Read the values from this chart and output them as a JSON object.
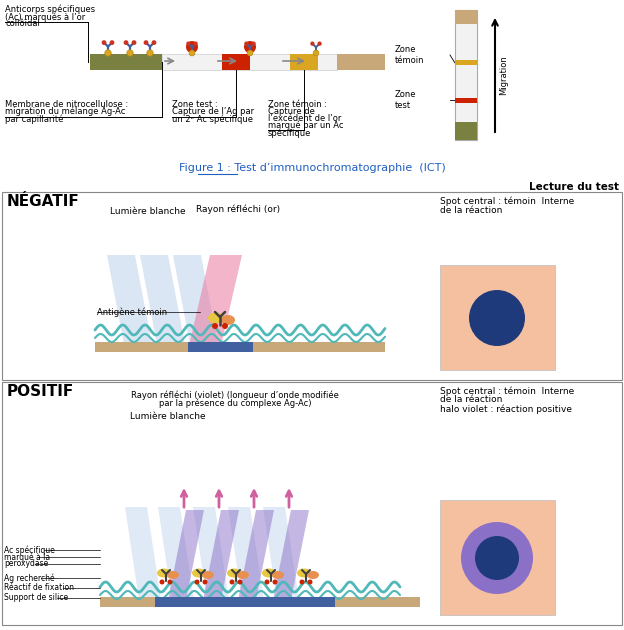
{
  "fig_width": 6.24,
  "fig_height": 6.3,
  "dpi": 100,
  "bg_color": "#ffffff",
  "figure1_title": "Figure 1 : Test d’immunochromatographie  (ICT)",
  "lecture_du_test": "Lecture du test",
  "negatif_label": "NÉGATIF",
  "positif_label": "POSITIF",
  "lumiere_blanche_neg": "Lumière blanche",
  "rayon_reflechi_or": "Rayon réfléchi (or)",
  "antigene_temoin": "Antigène témoin",
  "spot_neg_line1": "Spot central : témoin  Interne",
  "spot_neg_line2": "de la réaction",
  "lumiere_blanche_pos": "Lumière blanche",
  "rayon_reflechi_violet_line1": "Rayon réfléchi (violet) (longueur d’onde modifiée",
  "rayon_reflechi_violet_line2": "par la présence du complexe Ag-Ac)",
  "spot_pos_line1": "Spot central : témoin  Interne",
  "spot_pos_line2": "de la réaction",
  "spot_pos_line3": "halo violet : réaction positive",
  "ac_specifique_line1": "Ac spécifique",
  "ac_specifique_line2": "marqué à la",
  "ac_specifique_line3": "peroxydase",
  "ag_recherche": "Ag recherché",
  "reactif_fixation": "Réactif de fixation",
  "support_silice": "Support de silice",
  "membrane_text_line1": "Membrane de nitrocellulose :",
  "membrane_text_line2": "migration du mélange Ag-Ac",
  "membrane_text_line3": "par capillarité",
  "zone_test_line1": "Zone test :",
  "zone_test_line2": "Capture de l’Ag par",
  "zone_test_line3": "un 2ᵉ Ac spécifique",
  "zone_temoin_line1": "Zone témoin :",
  "zone_temoin_line2": "Capture de",
  "zone_temoin_line3": "l’excédent de l’or",
  "zone_temoin_line4": "marqué par un Ac",
  "zone_temoin_line5": "spécifique",
  "anticorps_line1": "Anticorps spécifiques",
  "anticorps_line2": "(Ac) marqués à l’or",
  "anticorps_line3": "collôïdal",
  "zone_temoin_label": "Zone\ntémoin",
  "zone_test_label": "Zone\ntest",
  "migration_label": "Migration",
  "color_blue_dark": "#1F3A7A",
  "color_violet": "#8B70C8",
  "color_orange_spot": "#F5C0A0",
  "color_olive": "#7A8040",
  "color_red": "#CC2200",
  "color_gold": "#DAA520",
  "color_pink": "#E878A0",
  "color_blue_box": "#4060A0",
  "color_teal": "#50B8B8",
  "color_beam_blue": "#B0C8E8",
  "color_strip_tan": "#C8A878"
}
